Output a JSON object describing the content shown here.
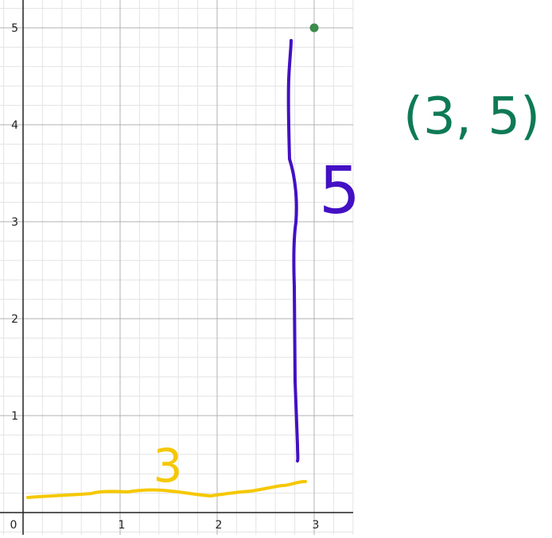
{
  "chart_data": {
    "type": "scatter",
    "title": "",
    "xlabel": "",
    "ylabel": "",
    "xlim": [
      -0.2,
      3.4
    ],
    "ylim": [
      -0.2,
      5.3
    ],
    "grid": true,
    "minor_grid_step": 0.2,
    "x_ticks": [
      {
        "value": 0,
        "label": "0"
      },
      {
        "value": 1,
        "label": "1"
      },
      {
        "value": 2,
        "label": "2"
      },
      {
        "value": 3,
        "label": "3"
      }
    ],
    "y_ticks": [
      {
        "value": 1,
        "label": "1"
      },
      {
        "value": 2,
        "label": "2"
      },
      {
        "value": 3,
        "label": "3"
      },
      {
        "value": 4,
        "label": "4"
      },
      {
        "value": 5,
        "label": "5"
      }
    ],
    "points": [
      {
        "x": 3,
        "y": 5,
        "color": "#3c8c4c"
      }
    ],
    "annotations": {
      "horizontal_label": "3",
      "vertical_label": "5",
      "coordinate_label": "(3, 5)",
      "horizontal_color": "#f5c800",
      "vertical_color": "#4310c4",
      "coordinate_color": "#0e7a55"
    }
  }
}
